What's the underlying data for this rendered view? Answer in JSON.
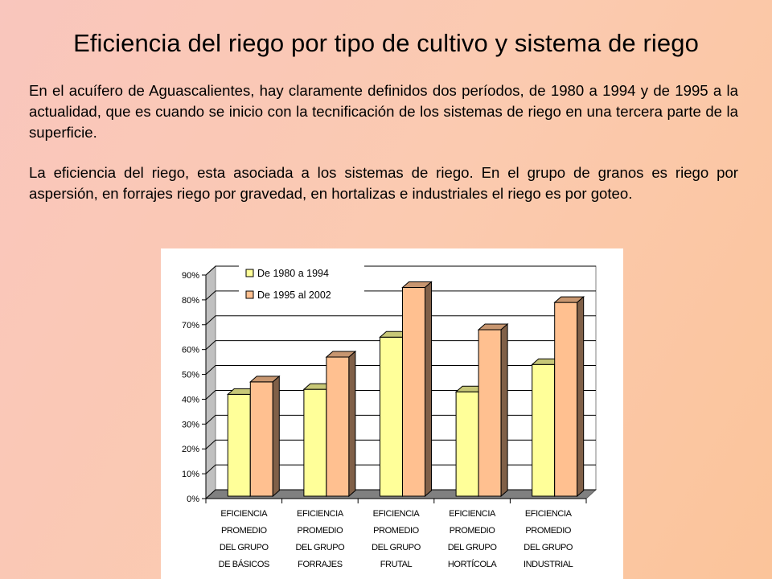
{
  "slide": {
    "title": "Eficiencia del riego por tipo de cultivo y sistema de riego",
    "paragraphs": [
      "En el acuífero de Aguascalientes, hay claramente definidos dos períodos, de 1980 a 1994 y de 1995 a la actualidad, que es cuando se inicio con la tecnificación de los sistemas de riego en una tercera parte de la superficie.",
      "La eficiencia del riego, esta asociada a los sistemas de riego. En el grupo de granos es riego por aspersión, en forrajes riego por gravedad, en hortalizas e industriales el riego es por goteo."
    ]
  },
  "chart_data": {
    "type": "bar",
    "style": "3d-clustered",
    "title": "",
    "xlabel": "",
    "ylabel": "",
    "ylim": [
      0,
      90
    ],
    "yticks": [
      0,
      10,
      20,
      30,
      40,
      50,
      60,
      70,
      80,
      90
    ],
    "ytick_labels": [
      "0%",
      "10%",
      "20%",
      "30%",
      "40%",
      "50%",
      "60%",
      "70%",
      "80%",
      "90%"
    ],
    "grid": true,
    "legend_position": "top-left",
    "categories": [
      [
        "EFICIENCIA",
        "PROMEDIO",
        "DEL GRUPO",
        "DE BÁSICOS"
      ],
      [
        "EFICIENCIA",
        "PROMEDIO",
        "DEL GRUPO",
        "FORRAJES"
      ],
      [
        "EFICIENCIA",
        "PROMEDIO",
        "DEL GRUPO",
        "FRUTAL"
      ],
      [
        "EFICIENCIA",
        "PROMEDIO",
        "DEL GRUPO",
        "HORTÍCOLA"
      ],
      [
        "EFICIENCIA",
        "PROMEDIO",
        "DEL GRUPO",
        "INDUSTRIAL"
      ]
    ],
    "series": [
      {
        "name": "De 1980 a 1994",
        "values": [
          41,
          43,
          64,
          42,
          53
        ],
        "color": "#ffff99"
      },
      {
        "name": "De 1995 al 2002",
        "values": [
          46,
          56,
          84,
          67,
          78
        ],
        "color": "#ffc090"
      }
    ]
  }
}
